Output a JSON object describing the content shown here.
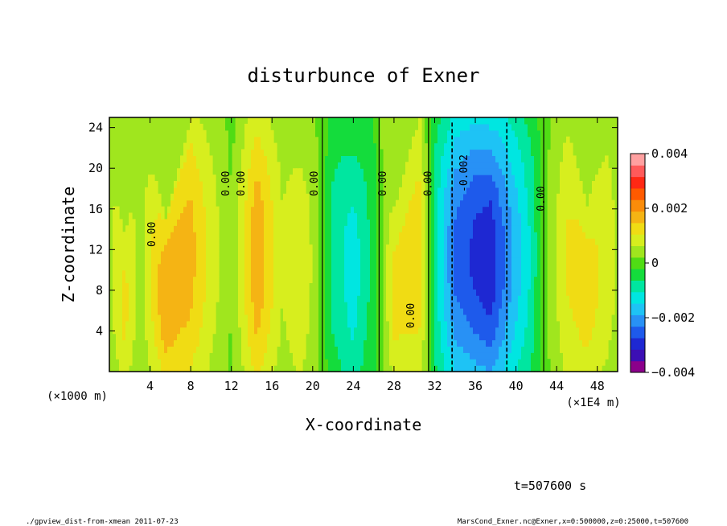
{
  "chart_data": {
    "type": "heatmap",
    "title": "disturbunce of Exner",
    "xlabel": "X-coordinate",
    "ylabel": "Z-coordinate",
    "x_unit_left": "(×1000 m)",
    "x_unit_right": "(×1E4 m)",
    "xlim": [
      0,
      50
    ],
    "ylim": [
      0,
      25
    ],
    "x_ticks": [
      4,
      8,
      12,
      16,
      20,
      24,
      28,
      32,
      36,
      40,
      44,
      48
    ],
    "y_ticks": [
      4,
      8,
      12,
      16,
      20,
      24
    ],
    "colorbar": {
      "range": [
        -0.004,
        0.004
      ],
      "tick_labels": [
        "0.004",
        "0.002",
        "0",
        "−0.002",
        "−0.004"
      ],
      "tick_values": [
        0.004,
        0.002,
        0,
        -0.002,
        -0.004
      ],
      "colors": [
        "#8b008b",
        "#3c0fb4",
        "#1e28d2",
        "#1e5aeb",
        "#2891f5",
        "#1ec3f5",
        "#00e6e1",
        "#00e6a0",
        "#14dc3c",
        "#50dc14",
        "#a0e61e",
        "#d7ee1e",
        "#f0dc14",
        "#f5b414",
        "#fa8c0a",
        "#ff5a00",
        "#ff2814",
        "#ff5a5a",
        "#ffa0a0"
      ]
    },
    "columns": [
      {
        "x": 0.0,
        "v": 0.0005,
        "zmax": 25
      },
      {
        "x": 1.5,
        "v": 0.0011,
        "zmax": 13
      },
      {
        "x": 3.0,
        "v": 0.0004,
        "zmax": 25
      },
      {
        "x": 5.5,
        "v": 0.0017,
        "zmax": 15
      },
      {
        "x": 8.0,
        "v": 0.0015,
        "zmax": 25
      },
      {
        "x": 10.0,
        "v": 0.0008,
        "zmax": 25
      },
      {
        "x": 12.0,
        "v": 0.0002,
        "zmax": 25
      },
      {
        "x": 14.5,
        "v": 0.0017,
        "zmax": 25
      },
      {
        "x": 17.0,
        "v": 0.0006,
        "zmax": 25
      },
      {
        "x": 18.7,
        "v": 0.001,
        "zmax": 21
      },
      {
        "x": 20.5,
        "v": 0.0003,
        "zmax": 25
      },
      {
        "x": 22.0,
        "v": -0.0007,
        "zmax": 25
      },
      {
        "x": 24.0,
        "v": -0.0012,
        "zmax": 21
      },
      {
        "x": 26.0,
        "v": -0.0004,
        "zmax": 25
      },
      {
        "x": 28.0,
        "v": 0.0011,
        "zmax": 16
      },
      {
        "x": 30.5,
        "v": 0.0012,
        "zmax": 25
      },
      {
        "x": 32.0,
        "v": -0.0008,
        "zmax": 25
      },
      {
        "x": 34.0,
        "v": -0.0022,
        "zmax": 25
      },
      {
        "x": 36.0,
        "v": -0.0026,
        "zmax": 25
      },
      {
        "x": 37.5,
        "v": -0.0028,
        "zmax": 24
      },
      {
        "x": 39.5,
        "v": -0.0018,
        "zmax": 25
      },
      {
        "x": 41.5,
        "v": -0.0009,
        "zmax": 25
      },
      {
        "x": 43.0,
        "v": 0.0002,
        "zmax": 25
      },
      {
        "x": 45.0,
        "v": 0.001,
        "zmax": 25
      },
      {
        "x": 47.0,
        "v": 0.0012,
        "zmax": 16
      },
      {
        "x": 49.0,
        "v": 0.0008,
        "zmax": 25
      },
      {
        "x": 50.0,
        "v": 0.0005,
        "zmax": 25
      }
    ],
    "contour_labels": [
      {
        "text": "0.00",
        "x": 4.5,
        "z": 13.5
      },
      {
        "text": "0.00",
        "x": 11.8,
        "z": 18.5
      },
      {
        "text": "0.00",
        "x": 13.3,
        "z": 18.5
      },
      {
        "text": "0.00",
        "x": 20.5,
        "z": 18.5
      },
      {
        "text": "0.00",
        "x": 27.2,
        "z": 18.5
      },
      {
        "text": "0.00",
        "x": 30.0,
        "z": 5.5
      },
      {
        "text": "0.00",
        "x": 31.7,
        "z": 18.5
      },
      {
        "text": "-0.002",
        "x": 35.2,
        "z": 19.5
      },
      {
        "text": "0.00",
        "x": 42.8,
        "z": 17.0
      }
    ]
  },
  "time_label": "t=507600 s",
  "footer_left": "./gpview_dist-from-xmean  2011-07-23",
  "footer_right": "MarsCond_Exner.nc@Exner,x=0:500000,z=0:25000,t=507600"
}
